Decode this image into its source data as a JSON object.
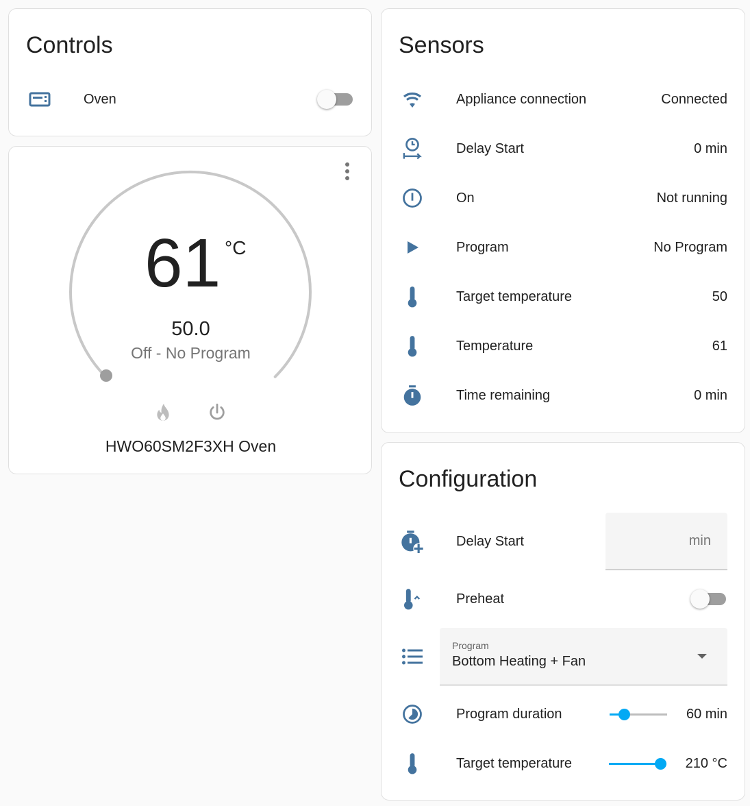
{
  "colors": {
    "icon": "#44739e",
    "accent": "#03a9f4"
  },
  "controls": {
    "title": "Controls",
    "items": [
      {
        "icon": "microwave-icon",
        "label": "Oven",
        "state": "off"
      }
    ]
  },
  "thermostat": {
    "current": "61",
    "unit": "°C",
    "target": "50.0",
    "status": "Off - No Program",
    "name": "HWO60SM2F3XH Oven",
    "modes": [
      "flame-icon",
      "power-icon"
    ],
    "target_fraction": 0
  },
  "sensors": {
    "title": "Sensors",
    "items": [
      {
        "icon": "wifi-icon",
        "label": "Appliance connection",
        "value": "Connected"
      },
      {
        "icon": "timer-delay-icon",
        "label": "Delay Start",
        "value": "0 min"
      },
      {
        "icon": "power-circle-icon",
        "label": "On",
        "value": "Not running"
      },
      {
        "icon": "play-icon",
        "label": "Program",
        "value": "No Program"
      },
      {
        "icon": "thermometer-icon",
        "label": "Target temperature",
        "value": "50"
      },
      {
        "icon": "thermometer-icon",
        "label": "Temperature",
        "value": "61"
      },
      {
        "icon": "timer-icon",
        "label": "Time remaining",
        "value": "0 min"
      }
    ]
  },
  "configuration": {
    "title": "Configuration",
    "delay_start": {
      "label": "Delay Start",
      "value": "",
      "unit": "min"
    },
    "preheat": {
      "label": "Preheat",
      "state": "off"
    },
    "program": {
      "label": "Program",
      "value": "Bottom Heating + Fan"
    },
    "program_duration": {
      "label": "Program duration",
      "value": "60 min",
      "fraction": 0.25
    },
    "target_temperature": {
      "label": "Target temperature",
      "value": "210 °C",
      "fraction": 0.9
    }
  }
}
